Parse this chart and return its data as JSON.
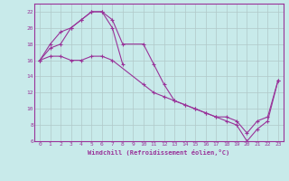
{
  "xlabel": "Windchill (Refroidissement éolien,°C)",
  "bg_color": "#c8eaea",
  "grid_color": "#b0c8c8",
  "line_color": "#993399",
  "xlim": [
    -0.5,
    23.5
  ],
  "ylim": [
    6,
    23
  ],
  "xticks": [
    0,
    1,
    2,
    3,
    4,
    5,
    6,
    7,
    8,
    9,
    10,
    11,
    12,
    13,
    14,
    15,
    16,
    17,
    18,
    19,
    20,
    21,
    22,
    23
  ],
  "yticks": [
    6,
    8,
    10,
    12,
    14,
    16,
    18,
    20,
    22
  ],
  "line1_x": [
    0,
    1,
    2,
    3,
    4,
    5,
    6,
    7,
    8,
    10,
    11,
    12,
    13,
    14,
    15,
    16,
    17,
    18,
    19,
    20,
    21,
    22,
    23
  ],
  "line1_y": [
    16,
    17.5,
    18,
    20,
    21,
    22,
    22,
    21,
    18,
    18,
    15.5,
    13,
    11,
    10.5,
    10,
    9.5,
    9,
    9,
    8.5,
    7,
    8.5,
    9,
    13.5
  ],
  "line2_x": [
    0,
    1,
    2,
    3,
    4,
    5,
    6,
    7,
    8
  ],
  "line2_y": [
    16,
    18,
    19.5,
    20,
    21,
    22,
    22,
    20,
    15.5
  ],
  "line3_x": [
    0,
    1,
    2,
    3,
    4,
    5,
    6,
    7,
    10,
    11,
    12,
    13,
    14,
    15,
    16,
    17,
    18,
    19,
    20,
    21,
    22,
    23
  ],
  "line3_y": [
    16,
    16.5,
    16.5,
    16,
    16,
    16.5,
    16.5,
    16,
    13,
    12,
    11.5,
    11,
    10.5,
    10,
    9.5,
    9,
    8.5,
    8,
    6,
    7.5,
    8.5,
    13.5
  ]
}
